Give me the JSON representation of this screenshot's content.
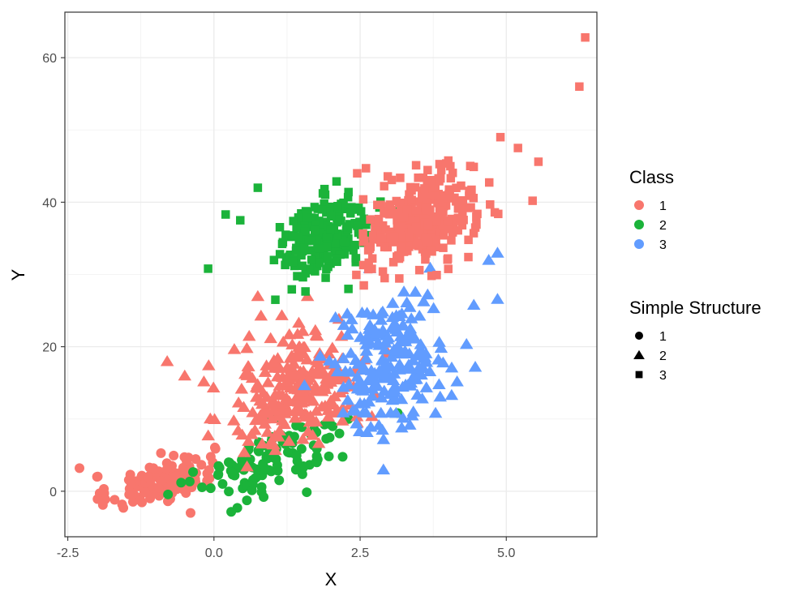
{
  "chart_data": {
    "type": "scatter",
    "xlabel": "X",
    "ylabel": "Y",
    "xlim": [
      -2.55,
      6.55
    ],
    "ylim": [
      -6.3,
      66.3
    ],
    "x_ticks": [
      -2.5,
      0,
      2.5,
      5
    ],
    "x_tick_labels": [
      "-2.5",
      "0.0",
      "2.5",
      "5.0"
    ],
    "y_ticks": [
      0,
      20,
      40,
      60
    ],
    "y_tick_labels": [
      "0",
      "20",
      "40",
      "60"
    ],
    "grid": true,
    "legend_position": "right",
    "legends": [
      {
        "title": "Class",
        "entries": [
          {
            "label": "1",
            "color": "#F8766D"
          },
          {
            "label": "2",
            "color": "#1BB33A"
          },
          {
            "label": "3",
            "color": "#619CFF"
          }
        ]
      },
      {
        "title": "Simple Structure",
        "entries": [
          {
            "label": "1",
            "shape": "circle"
          },
          {
            "label": "2",
            "shape": "triangle"
          },
          {
            "label": "3",
            "shape": "square"
          }
        ]
      }
    ],
    "clusters": [
      {
        "class": "1",
        "structure": "1",
        "n": 130,
        "x_mean": -0.9,
        "x_sd": 0.45,
        "y_mean": 1.5,
        "y_sd": 1.5,
        "explicit_points": [
          [
            -2.3,
            3.2
          ],
          [
            -2.0,
            2.0
          ],
          [
            -1.9,
            -1.9
          ],
          [
            -1.55,
            -2.3
          ],
          [
            -0.4,
            -3.0
          ]
        ]
      },
      {
        "class": "2",
        "structure": "1",
        "n": 110,
        "x_mean": 1.05,
        "x_sd": 0.65,
        "y_mean": 4.5,
        "y_sd": 2.2,
        "explicit_points": [
          [
            0.4,
            -2.3
          ],
          [
            0.85,
            -0.8
          ],
          [
            2.3,
            10.0
          ]
        ]
      },
      {
        "class": "1",
        "structure": "2",
        "n": 240,
        "x_mean": 1.45,
        "x_sd": 0.6,
        "y_mean": 14.5,
        "y_sd": 4.0,
        "explicit_points": [
          [
            -0.8,
            18.0
          ],
          [
            -0.5,
            16.0
          ],
          [
            0.75,
            27.0
          ],
          [
            1.6,
            27.0
          ],
          [
            2.45,
            9.5
          ]
        ]
      },
      {
        "class": "3",
        "structure": "2",
        "n": 200,
        "x_mean": 3.0,
        "x_sd": 0.5,
        "y_mean": 18.0,
        "y_sd": 4.5,
        "explicit_points": [
          [
            2.9,
            7.2
          ],
          [
            3.35,
            9.2
          ],
          [
            4.85,
            33.0
          ],
          [
            4.7,
            32.0
          ],
          [
            4.85,
            26.6
          ],
          [
            3.85,
            14.8
          ]
        ]
      },
      {
        "class": "2",
        "structure": "3",
        "n": 220,
        "x_mean": 1.95,
        "x_sd": 0.4,
        "y_mean": 35.5,
        "y_sd": 2.5,
        "explicit_points": [
          [
            -0.1,
            30.8
          ],
          [
            0.2,
            38.3
          ],
          [
            0.45,
            37.5
          ],
          [
            0.75,
            42.0
          ],
          [
            1.05,
            26.5
          ],
          [
            2.3,
            28.0
          ]
        ]
      },
      {
        "class": "1",
        "structure": "3",
        "n": 320,
        "x_mean": 3.55,
        "x_sd": 0.45,
        "y_mean": 37.5,
        "y_sd": 3.0,
        "explicit_points": [
          [
            6.35,
            62.8
          ],
          [
            6.25,
            56.0
          ],
          [
            4.9,
            49.0
          ],
          [
            5.2,
            47.5
          ],
          [
            5.55,
            45.6
          ],
          [
            5.45,
            40.2
          ],
          [
            2.45,
            44.0
          ],
          [
            2.6,
            44.7
          ]
        ]
      }
    ]
  }
}
